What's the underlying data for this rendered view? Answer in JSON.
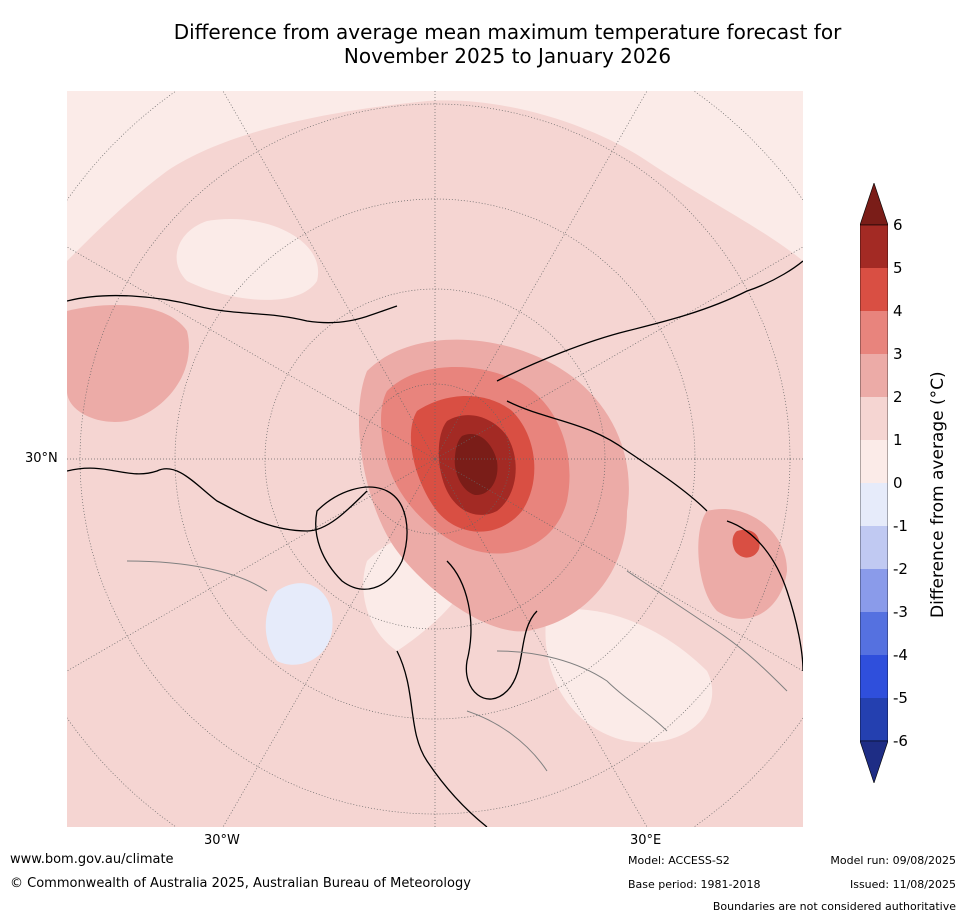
{
  "title_line1": "Difference from average mean maximum temperature forecast for",
  "title_line2": "November 2025 to January 2026",
  "map": {
    "lat_label": "30°N",
    "lon_labels": [
      "30°W",
      "30°E"
    ],
    "colors": {
      "ocean_base": "#fbebe8",
      "light_pos": "#f5d5d2",
      "mid_pos": "#ecaba7",
      "mid2_pos": "#e8847d",
      "strong_pos": "#d94f43",
      "very_strong_pos": "#a32a24",
      "extreme_pos": "#7a1d18",
      "light_neg": "#e6ebfa",
      "coast": "#000000",
      "border": "#808080",
      "grid": "#666666"
    }
  },
  "colorbar": {
    "title": "Difference from average (°C)",
    "ticks": [
      "6",
      "5",
      "4",
      "3",
      "2",
      "1",
      "0",
      "-1",
      "-2",
      "-3",
      "-4",
      "-5",
      "-6"
    ],
    "colors": [
      "#7a1d18",
      "#a32a24",
      "#d94f43",
      "#e8847d",
      "#ecaba7",
      "#f5d5d2",
      "#fbebe8",
      "#e6ebfa",
      "#c0c9f2",
      "#8a9bea",
      "#5571e0",
      "#2f4fdc",
      "#2440b0",
      "#1e2d85"
    ]
  },
  "footer": {
    "url": "www.bom.gov.au/climate",
    "copyright": "© Commonwealth of Australia 2025, Australian Bureau of Meteorology",
    "model": "Model: ACCESS-S2",
    "base_period": "Base period: 1981-2018",
    "model_run": "Model run: 09/08/2025",
    "issued": "Issued: 11/08/2025",
    "disclaimer": "Boundaries are not considered authoritative"
  }
}
